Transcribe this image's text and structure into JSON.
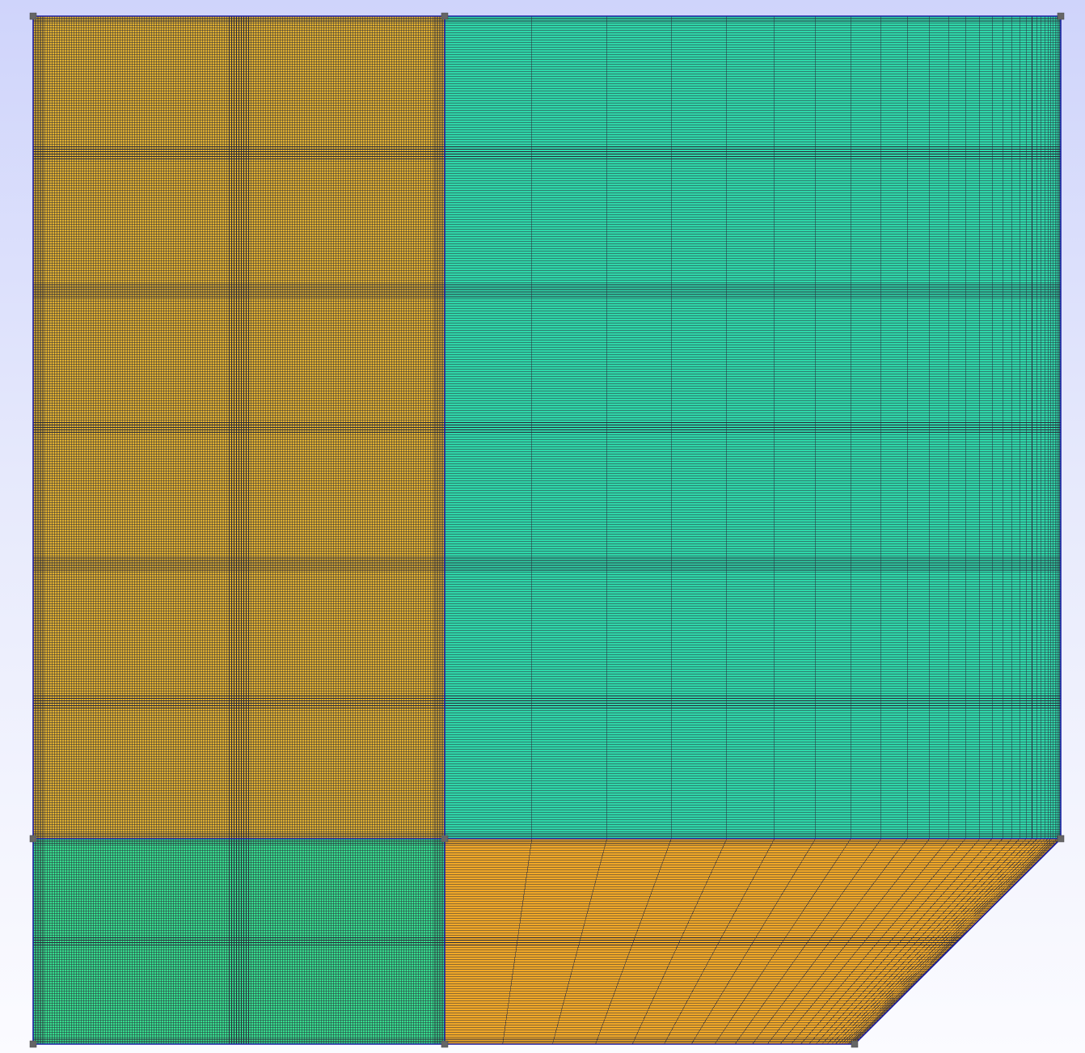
{
  "viewer": {
    "background_top": "#cfd4fb",
    "background_bottom": "#fbfbff"
  },
  "mesh": {
    "line_color": "#2a2a3a",
    "edge_color": "#1a1aa0",
    "vertex_color": "#666666",
    "blocks": [
      {
        "id": "block-upper-left",
        "fill": "#e0b030",
        "cols": 170,
        "rows": 340,
        "grading": "uniform"
      },
      {
        "id": "block-upper-right",
        "fill": "#2fd6a8",
        "cols": 30,
        "rows": 340,
        "grading": "cells-shrink-toward-right-edge"
      },
      {
        "id": "block-lower-left",
        "fill": "#36dc8c",
        "cols": 170,
        "rows": 85,
        "grading": "uniform"
      },
      {
        "id": "block-lower-right-chamfered",
        "fill": "#f0a828",
        "cols": 30,
        "rows": 85,
        "grading": "cells-shrink-toward-chamfer"
      }
    ]
  }
}
